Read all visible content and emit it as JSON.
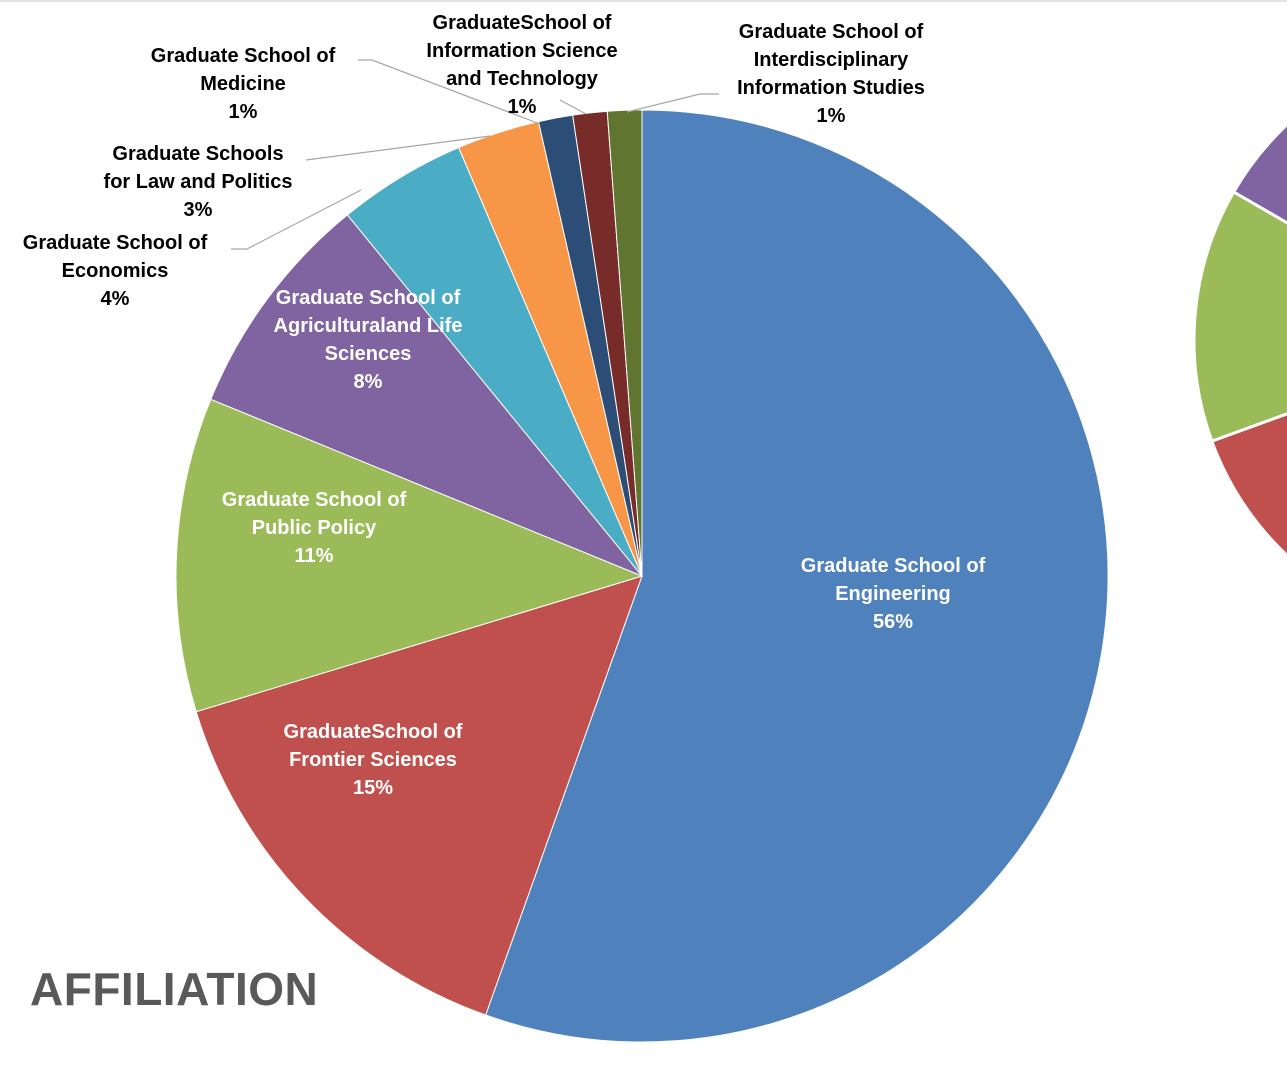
{
  "title": "AFFILIATION",
  "chart_data": {
    "type": "pie",
    "title": "AFFILIATION",
    "slices": [
      {
        "lines": [
          "Graduate School of",
          "Engineering",
          "56%"
        ],
        "value": 56.0,
        "color": "#4f81bd",
        "label_pos": "inside"
      },
      {
        "lines": [
          "GraduateSchool of",
          "Frontier Sciences",
          "15%"
        ],
        "value": 15.0,
        "color": "#c0504d",
        "label_pos": "inside"
      },
      {
        "lines": [
          "Graduate School of",
          "Public Policy",
          "11%"
        ],
        "value": 11.0,
        "color": "#9bbb59",
        "label_pos": "inside"
      },
      {
        "lines": [
          "Graduate School of",
          "Agriculturaland Life",
          "Sciences",
          "8%"
        ],
        "value": 8.0,
        "color": "#8064a2",
        "label_pos": "inside"
      },
      {
        "lines": [
          "Graduate School of",
          "Economics",
          "4%"
        ],
        "value": 4.5,
        "color": "#4bacc6",
        "label_pos": "outside"
      },
      {
        "lines": [
          "Graduate Schools",
          "for Law and Politics",
          "3%"
        ],
        "value": 2.9,
        "color": "#f79646",
        "label_pos": "outside"
      },
      {
        "lines": [
          "Graduate School of",
          "Medicine",
          "1%"
        ],
        "value": 1.2,
        "color": "#2c4d75",
        "label_pos": "outside"
      },
      {
        "lines": [
          "GraduateSchool of",
          "Information Science",
          "and Technology",
          "1%"
        ],
        "value": 1.2,
        "color": "#772c2a",
        "label_pos": "outside"
      },
      {
        "lines": [
          "Graduate School of",
          "Interdisciplinary",
          "Information Studies",
          "1%"
        ],
        "value": 1.2,
        "color": "#5f7530",
        "label_pos": "outside"
      }
    ],
    "start": "12 o'clock",
    "direction": "clockwise",
    "legend": "none"
  }
}
